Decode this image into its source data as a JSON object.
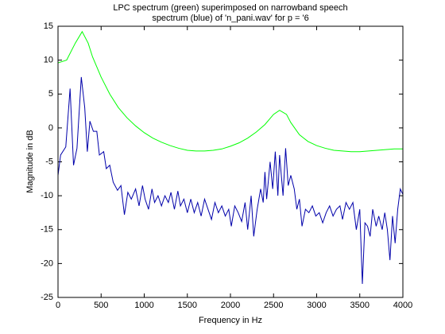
{
  "chart_data": {
    "type": "line",
    "title": [
      "LPC spectrum (green) superimposed on narrowband speech",
      "spectrum (blue) of 'n_pani.wav' for p = '6"
    ],
    "xlabel": "Frequency in Hz",
    "ylabel": "Magnitude in dB",
    "xlim": [
      0,
      4000
    ],
    "xticks": [
      0,
      500,
      1000,
      1500,
      2000,
      2500,
      3000,
      3500,
      4000
    ],
    "ylim": [
      -25,
      15
    ],
    "yticks": [
      -25,
      -20,
      -15,
      -10,
      -5,
      0,
      5,
      10,
      15
    ],
    "grid": false,
    "series": [
      {
        "color": "#00ff00",
        "x": [
          0,
          100,
          200,
          280,
          350,
          400,
          500,
          600,
          700,
          800,
          900,
          1000,
          1100,
          1200,
          1300,
          1400,
          1500,
          1600,
          1700,
          1800,
          1900,
          2000,
          2100,
          2200,
          2300,
          2400,
          2500,
          2570,
          2650,
          2700,
          2800,
          2900,
          3000,
          3100,
          3200,
          3300,
          3400,
          3500,
          3600,
          3700,
          3800,
          3900,
          4000
        ],
        "values": [
          9.6,
          10.0,
          12.5,
          14.2,
          12.5,
          10.5,
          7.5,
          5,
          3,
          1.5,
          0.3,
          -0.7,
          -1.5,
          -2.1,
          -2.6,
          -3.0,
          -3.3,
          -3.4,
          -3.4,
          -3.3,
          -3.1,
          -2.7,
          -2.2,
          -1.5,
          -0.6,
          0.5,
          2.0,
          2.6,
          2.0,
          0.8,
          -1.0,
          -2.0,
          -2.6,
          -3.0,
          -3.3,
          -3.4,
          -3.5,
          -3.5,
          -3.4,
          -3.3,
          -3.2,
          -3.1,
          -3.1
        ]
      },
      {
        "color": "#0000aa",
        "x": [
          0,
          30,
          90,
          140,
          180,
          220,
          270,
          310,
          340,
          370,
          410,
          450,
          480,
          530,
          560,
          600,
          640,
          690,
          730,
          770,
          810,
          850,
          900,
          940,
          980,
          1010,
          1050,
          1090,
          1120,
          1160,
          1200,
          1240,
          1280,
          1310,
          1350,
          1390,
          1420,
          1460,
          1500,
          1540,
          1580,
          1620,
          1660,
          1700,
          1740,
          1780,
          1820,
          1860,
          1900,
          1940,
          1980,
          2010,
          2050,
          2090,
          2130,
          2170,
          2200,
          2240,
          2270,
          2310,
          2350,
          2380,
          2400,
          2420,
          2460,
          2490,
          2520,
          2550,
          2570,
          2610,
          2640,
          2670,
          2700,
          2740,
          2770,
          2800,
          2830,
          2870,
          2910,
          2950,
          2990,
          3030,
          3070,
          3110,
          3150,
          3190,
          3230,
          3270,
          3300,
          3340,
          3380,
          3420,
          3460,
          3500,
          3530,
          3560,
          3590,
          3620,
          3650,
          3690,
          3720,
          3760,
          3790,
          3820,
          3850,
          3880,
          3910,
          3940,
          3970,
          4000
        ],
        "values": [
          -7,
          -4,
          -2.8,
          5.8,
          -5.5,
          -3,
          7.5,
          3,
          -3.5,
          1,
          -0.5,
          -0.5,
          -4,
          -3.5,
          -6,
          -5.5,
          -8,
          -9.2,
          -8.5,
          -12.8,
          -9.5,
          -10.5,
          -9,
          -11.5,
          -8.5,
          -10.5,
          -12,
          -9,
          -11,
          -10,
          -11.5,
          -10,
          -11,
          -9.5,
          -12,
          -9.3,
          -11.5,
          -10.5,
          -12.5,
          -10.5,
          -12.5,
          -11,
          -13,
          -10.5,
          -12,
          -13.5,
          -11,
          -12.5,
          -11.5,
          -13,
          -12,
          -14.5,
          -11.5,
          -12.5,
          -13.8,
          -11,
          -15,
          -10,
          -16,
          -12,
          -9,
          -11,
          -6.5,
          -10.5,
          -5,
          -9,
          -3.5,
          -10,
          -4,
          -10,
          -3,
          -8.5,
          -7,
          -9,
          -12,
          -10.5,
          -14.5,
          -12,
          -12.5,
          -11.5,
          -13,
          -12.5,
          -14,
          -12.5,
          -11.5,
          -13,
          -12,
          -11.5,
          -13.5,
          -11,
          -12,
          -11,
          -15,
          -12,
          -23,
          -14,
          -14.5,
          -16,
          -12,
          -14.5,
          -13,
          -15,
          -12.5,
          -15,
          -19.5,
          -13,
          -17,
          -12,
          -9,
          -9.8
        ]
      }
    ]
  }
}
